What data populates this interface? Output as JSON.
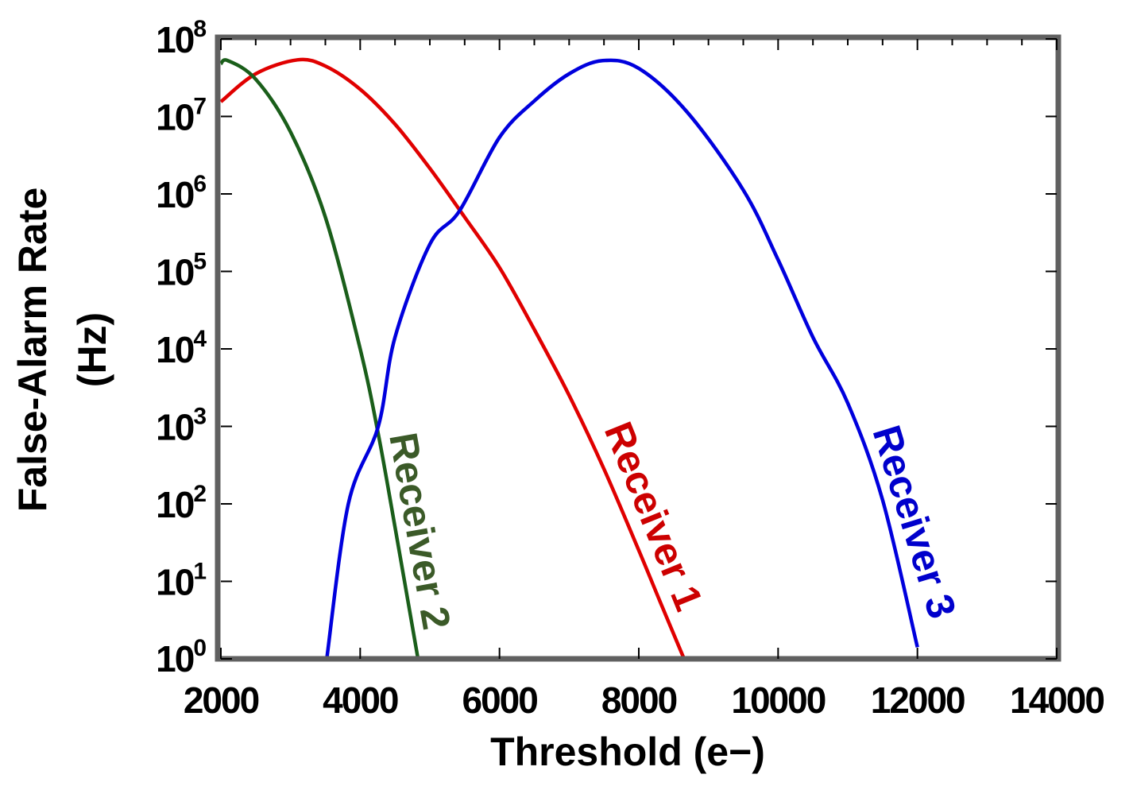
{
  "chart_data": {
    "type": "line",
    "title": "",
    "xlabel": "Threshold (e−)",
    "ylabel_lines": [
      "False-Alarm Rate",
      "(Hz)"
    ],
    "xlim": [
      2000,
      14000
    ],
    "ylim": [
      1,
      100000000
    ],
    "yscale": "log",
    "grid": false,
    "legend": "none (inline labels)",
    "x_ticks": [
      "2000",
      "4000",
      "6000",
      "8000",
      "10000",
      "12000",
      "14000"
    ],
    "y_ticks": [
      {
        "base": "10",
        "exp": "0"
      },
      {
        "base": "10",
        "exp": "1"
      },
      {
        "base": "10",
        "exp": "2"
      },
      {
        "base": "10",
        "exp": "3"
      },
      {
        "base": "10",
        "exp": "4"
      },
      {
        "base": "10",
        "exp": "5"
      },
      {
        "base": "10",
        "exp": "6"
      },
      {
        "base": "10",
        "exp": "7"
      },
      {
        "base": "10",
        "exp": "8"
      }
    ],
    "frame_color": "#606060",
    "series": [
      {
        "name": "Receiver 1",
        "color": "#e00000",
        "label_color": "#cc0000",
        "x": [
          2000,
          2500,
          3100,
          3500,
          4000,
          4500,
          5000,
          5500,
          6000,
          6500,
          7000,
          7500,
          8000,
          8300,
          8650
        ],
        "log10_y": [
          7.19,
          7.55,
          7.73,
          7.65,
          7.35,
          6.9,
          6.33,
          5.7,
          5.05,
          4.25,
          3.4,
          2.45,
          1.4,
          0.75,
          0
        ]
      },
      {
        "name": "Receiver 2",
        "color": "#1a5e1a",
        "label_color": "#3b5a28",
        "x": [
          2000,
          2100,
          2500,
          3000,
          3500,
          4000,
          4260,
          4500,
          4830
        ],
        "log10_y": [
          7.68,
          7.72,
          7.48,
          6.8,
          5.7,
          4.0,
          2.9,
          1.7,
          0
        ]
      },
      {
        "name": "Receiver 3",
        "color": "#0000dd",
        "label_color": "#0000cc",
        "x": [
          3520,
          3830,
          4260,
          4500,
          5000,
          5425,
          6000,
          6500,
          7000,
          7480,
          8000,
          8700,
          9500,
          10000,
          10500,
          11000,
          11500,
          12000
        ],
        "log10_y": [
          0,
          2.0,
          3.0,
          4.15,
          5.35,
          5.78,
          6.73,
          7.2,
          7.55,
          7.72,
          7.62,
          7.05,
          6.05,
          5.15,
          4.15,
          3.3,
          2.05,
          0.15
        ]
      }
    ]
  }
}
